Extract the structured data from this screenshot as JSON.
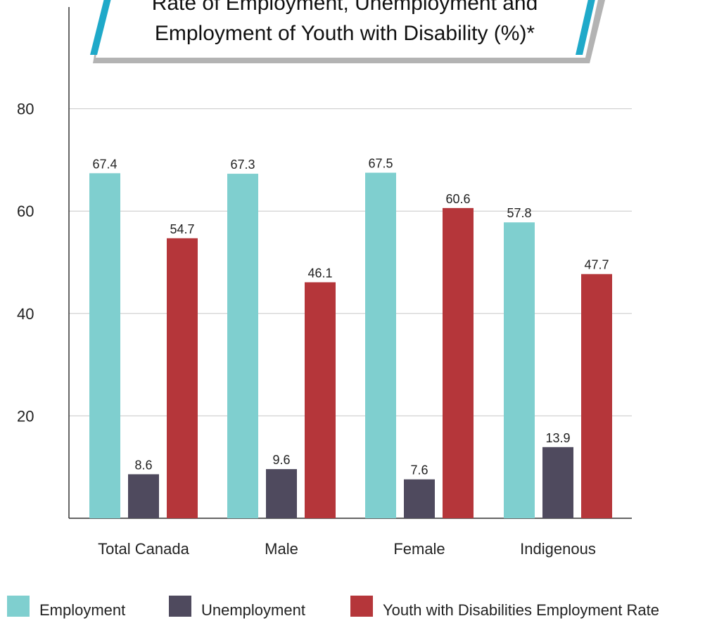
{
  "chart_data": {
    "type": "bar",
    "title_lines": [
      "Rate of Employment, Unemployment and",
      "Employment of Youth with Disability (%)*"
    ],
    "categories": [
      "Total Canada",
      "Male",
      "Female",
      "Indigenous"
    ],
    "series": [
      {
        "name": "Employment",
        "color": "#7fcfcf",
        "values": [
          67.4,
          67.3,
          67.5,
          57.8
        ]
      },
      {
        "name": "Unemployment",
        "color": "#4f4a5e",
        "values": [
          8.6,
          9.6,
          7.6,
          13.9
        ]
      },
      {
        "name": "Youth with Disabilities Employment Rate",
        "color": "#b5363a",
        "values": [
          54.7,
          46.1,
          60.6,
          47.7
        ]
      }
    ],
    "y_ticks": [
      20,
      40,
      60,
      80
    ],
    "ylim": [
      0,
      100
    ],
    "grid": true,
    "legend_position": "bottom",
    "title_accent_color": "#1fa9c9"
  }
}
